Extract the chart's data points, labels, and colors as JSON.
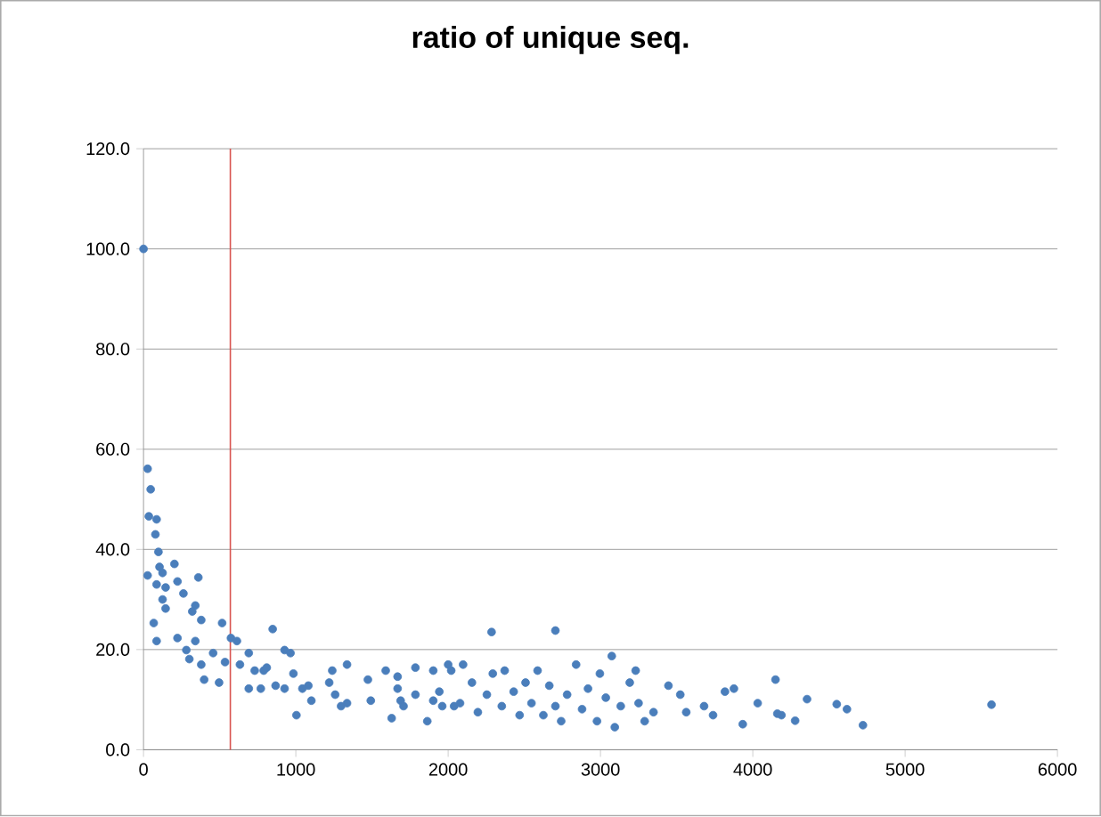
{
  "chart_data": {
    "type": "scatter",
    "title": "ratio of unique seq.",
    "x": [
      0,
      27,
      47,
      35,
      86,
      78,
      98,
      27,
      105,
      125,
      86,
      145,
      125,
      203,
      223,
      262,
      360,
      340,
      379,
      320,
      67,
      86,
      145,
      223,
      281,
      301,
      340,
      379,
      398,
      457,
      496,
      516,
      535,
      574,
      613,
      633,
      691,
      691,
      730,
      789,
      770,
      809,
      848,
      867,
      926,
      926,
      965,
      984,
      1004,
      1043,
      1082,
      1102,
      1239,
      1219,
      1258,
      1297,
      1336,
      1336,
      1473,
      1492,
      1590,
      1629,
      1668,
      1668,
      1688,
      1707,
      1785,
      1785,
      1863,
      1902,
      1902,
      1961,
      2000,
      2020,
      2039,
      2078,
      2285,
      2704,
      3074,
      2098,
      1942,
      2156,
      2195,
      2254,
      2293,
      2352,
      2371,
      2430,
      2469,
      2508,
      2547,
      2587,
      2625,
      2664,
      2704,
      2742,
      2781,
      2840,
      2879,
      2918,
      2977,
      2996,
      3035,
      3094,
      3133,
      3192,
      3231,
      3250,
      3290,
      3348,
      3446,
      3524,
      3563,
      3680,
      3739,
      3817,
      3876,
      3934,
      4032,
      4149,
      4188,
      4161,
      4278,
      4356,
      4551,
      4618,
      4723,
      5567
    ],
    "values": [
      100,
      56.1,
      52,
      46.6,
      46,
      43,
      39.5,
      34.8,
      36.5,
      35.3,
      33.0,
      32.4,
      30.0,
      37.1,
      33.6,
      31.2,
      34.4,
      28.8,
      25.9,
      27.6,
      25.3,
      21.7,
      28.2,
      22.3,
      19.9,
      18.1,
      21.7,
      17.0,
      14.0,
      19.3,
      13.4,
      25.3,
      17.5,
      22.3,
      21.7,
      17.0,
      19.3,
      12.2,
      15.8,
      15.8,
      12.2,
      16.4,
      24.1,
      12.8,
      12.2,
      19.9,
      19.3,
      15.2,
      6.9,
      12.2,
      12.8,
      9.8,
      15.8,
      13.4,
      11.0,
      8.7,
      17.0,
      9.3,
      14.0,
      9.8,
      15.8,
      6.3,
      12.2,
      14.6,
      9.8,
      8.7,
      16.4,
      11.0,
      5.7,
      15.8,
      9.8,
      8.7,
      17.0,
      15.8,
      8.7,
      9.3,
      23.5,
      23.8,
      18.7,
      17.0,
      11.6,
      13.4,
      7.5,
      11.0,
      15.2,
      8.7,
      15.8,
      11.6,
      6.9,
      13.4,
      9.3,
      15.8,
      6.9,
      12.8,
      8.7,
      5.7,
      11.0,
      17.0,
      8.1,
      12.2,
      5.7,
      15.2,
      10.4,
      4.5,
      8.7,
      13.4,
      15.8,
      9.3,
      5.7,
      7.5,
      12.8,
      11.0,
      7.5,
      8.7,
      6.9,
      11.6,
      12.2,
      5.1,
      9.3,
      14.0,
      6.9,
      7.2,
      5.8,
      10.1,
      9.1,
      8.1,
      4.9,
      9.0
    ],
    "color": "#4a7ebb",
    "xlim": [
      0,
      6000
    ],
    "xticks": [
      0,
      1000,
      2000,
      3000,
      4000,
      5000,
      6000
    ],
    "ylim": [
      0,
      120
    ],
    "yticks": [
      {
        "value": 0,
        "label": "0.0"
      },
      {
        "value": 20,
        "label": "20.0"
      },
      {
        "value": 40,
        "label": "40.0"
      },
      {
        "value": 60,
        "label": "60.0"
      },
      {
        "value": 80,
        "label": "80.0"
      },
      {
        "value": 100,
        "label": "100.0"
      },
      {
        "value": 120,
        "label": "120.0"
      }
    ],
    "grid": "y",
    "ref_lines": [
      {
        "axis": "x",
        "value": 570,
        "color": "#d9534f"
      }
    ]
  }
}
